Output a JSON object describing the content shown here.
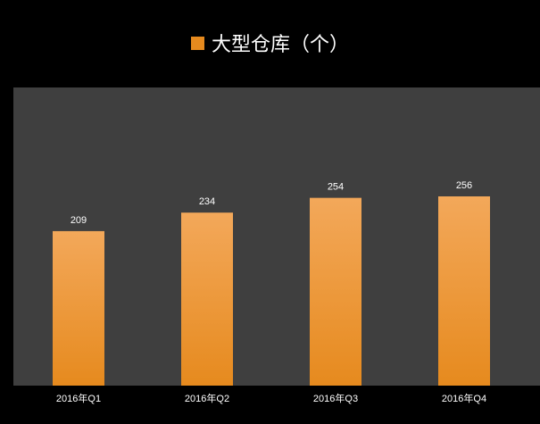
{
  "chart_data": {
    "type": "bar",
    "categories": [
      "2016年Q1",
      "2016年Q2",
      "2016年Q3",
      "2016年Q4"
    ],
    "series": [
      {
        "name": "大型仓库（个）",
        "values": [
          209,
          234,
          254,
          256
        ]
      }
    ],
    "title": "",
    "xlabel": "",
    "ylabel": "",
    "ylim": [
      0,
      360
    ],
    "grid": false,
    "legend_position": "top-center",
    "colors": {
      "background": "#000000",
      "plot_background": "#3f3f3f",
      "bar_top": "#f3a85a",
      "bar_bottom": "#e68a1e",
      "text": "#ffffff"
    }
  }
}
